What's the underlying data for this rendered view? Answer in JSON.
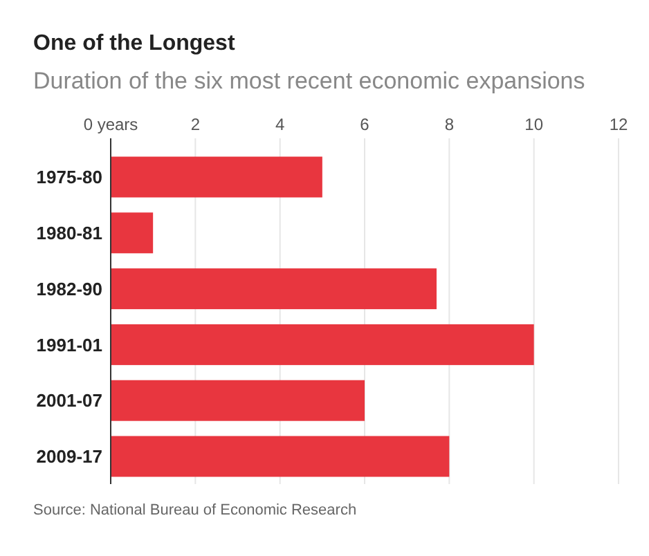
{
  "chart_data": {
    "type": "bar",
    "orientation": "horizontal",
    "title": "One of the Longest",
    "subtitle": "Duration of the six most recent economic expansions",
    "categories": [
      "1975-80",
      "1980-81",
      "1982-90",
      "1991-01",
      "2001-07",
      "2009-17"
    ],
    "values": [
      5.0,
      1.0,
      7.7,
      10.0,
      6.0,
      8.0
    ],
    "color": "#e8363f",
    "xlim": [
      0,
      12
    ],
    "xticks": [
      {
        "value": 0,
        "label": "0 years"
      },
      2,
      4,
      6,
      8,
      10,
      12
    ],
    "grid": "x",
    "annotations": [
      "Source: National Bureau of Economic Research"
    ]
  }
}
